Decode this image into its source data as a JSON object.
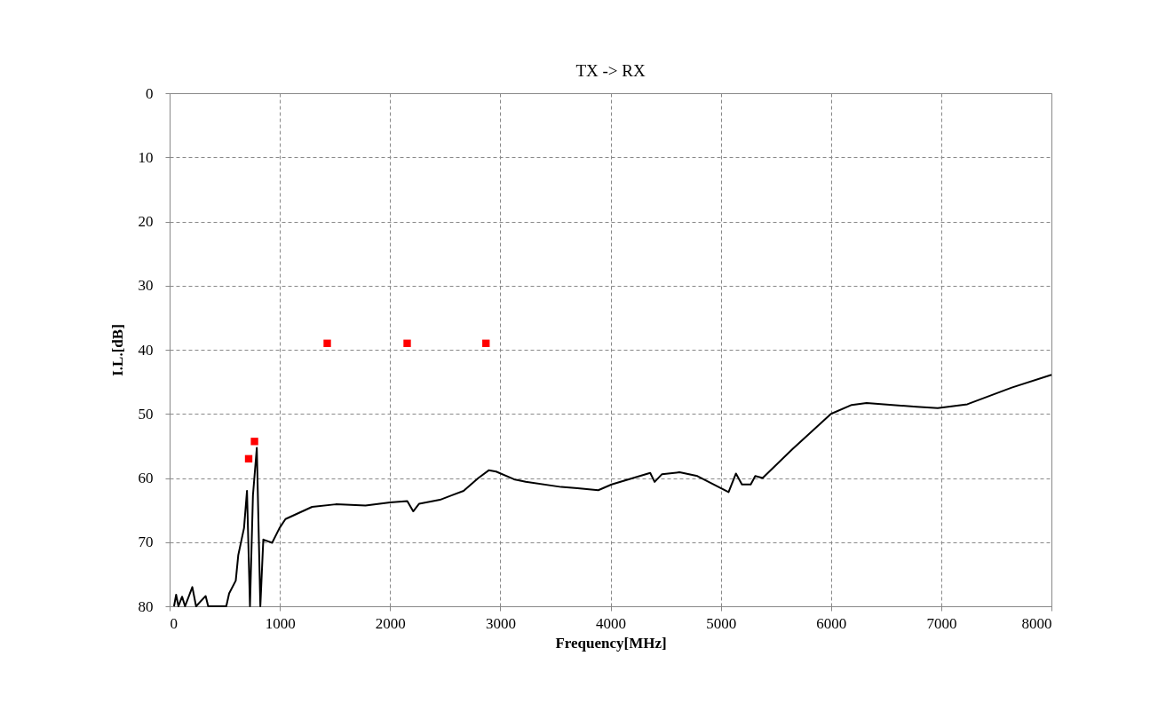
{
  "chart_data": {
    "type": "line",
    "title": "TX -> RX",
    "xlabel": "Frequency[MHz]",
    "ylabel": "I.L.[dB]",
    "xlim": [
      0,
      8000
    ],
    "xticks": [
      0,
      1000,
      2000,
      3000,
      4000,
      5000,
      6000,
      7000,
      8000
    ],
    "ylim": [
      80,
      0
    ],
    "yticks": [
      0,
      10,
      20,
      30,
      40,
      50,
      60,
      70,
      80
    ],
    "grid": true,
    "line_style": "solid",
    "series": [
      {
        "color": "#000000",
        "x": [
          40,
          59,
          80,
          113,
          140,
          206,
          240,
          327,
          350,
          514,
          540,
          600,
          623,
          675,
          702,
          729,
          756,
          791,
          823,
          850,
          930,
          997,
          1051,
          1293,
          1508,
          1777,
          2000,
          2156,
          2210,
          2264,
          2452,
          2667,
          2801,
          2895,
          2962,
          3124,
          3231,
          3553,
          3701,
          3889,
          4010,
          4360,
          4400,
          4467,
          4627,
          4788,
          5071,
          5138,
          5192,
          5272,
          5313,
          5380,
          5650,
          6000,
          6188,
          6323,
          6776,
          6968,
          7237,
          7640,
          8000
        ],
        "values": [
          80,
          78.2,
          80,
          78.5,
          80,
          77,
          80,
          78.4,
          80,
          80,
          78,
          76,
          72,
          67.8,
          62,
          80,
          62.7,
          55.3,
          80,
          69.6,
          70.1,
          67.8,
          66.4,
          64.5,
          64.1,
          64.3,
          63.8,
          63.6,
          65.2,
          64,
          63.4,
          62,
          60,
          58.8,
          59,
          60.2,
          60.6,
          61.4,
          61.6,
          61.9,
          61,
          59.2,
          60.6,
          59.4,
          59.1,
          59.7,
          62.2,
          59.3,
          61,
          61,
          59.7,
          60,
          55.5,
          50,
          48.6,
          48.3,
          48.9,
          49.1,
          48.5,
          45.9,
          43.9
        ]
      },
      {
        "type": "scatter",
        "color": "#ff0000",
        "x": [
          717,
          770,
          1430,
          2155,
          2870
        ],
        "values": [
          57,
          54.3,
          39,
          39,
          39
        ]
      }
    ]
  }
}
